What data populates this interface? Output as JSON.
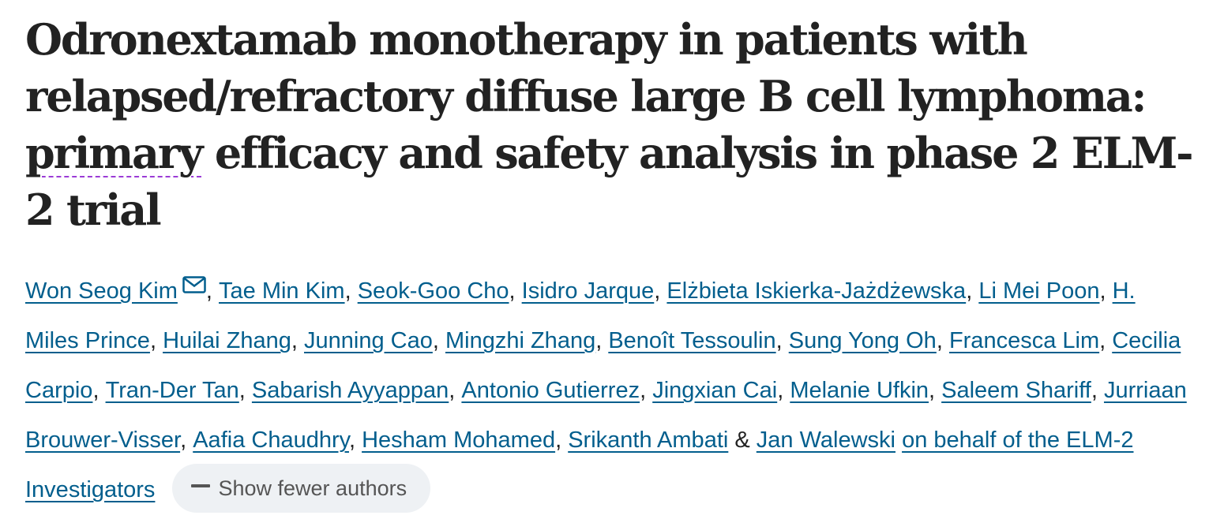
{
  "title": {
    "before_flag": "Odronextamab monotherapy in patients with relapsed/refractory diffuse large B cell lymphoma: ",
    "flagged_word": "primary",
    "after_flag": " efficacy and safety analysis in phase 2 ELM-2 trial"
  },
  "authors": [
    {
      "name": "Won Seog Kim",
      "corresponding": true
    },
    {
      "name": "Tae Min Kim"
    },
    {
      "name": "Seok-Goo Cho"
    },
    {
      "name": "Isidro Jarque"
    },
    {
      "name": "Elżbieta Iskierka-Jażdżewska"
    },
    {
      "name": "Li Mei Poon"
    },
    {
      "name": "H. Miles Prince"
    },
    {
      "name": "Huilai Zhang"
    },
    {
      "name": "Junning Cao"
    },
    {
      "name": "Mingzhi Zhang"
    },
    {
      "name": "Benoît Tessoulin"
    },
    {
      "name": "Sung Yong Oh"
    },
    {
      "name": "Francesca Lim"
    },
    {
      "name": "Cecilia Carpio"
    },
    {
      "name": "Tran-Der Tan"
    },
    {
      "name": "Sabarish Ayyappan"
    },
    {
      "name": "Antonio Gutierrez"
    },
    {
      "name": "Jingxian Cai"
    },
    {
      "name": "Melanie Ufkin"
    },
    {
      "name": "Saleem Shariff"
    },
    {
      "name": "Jurriaan Brouwer-Visser"
    },
    {
      "name": "Aafia Chaudhry"
    },
    {
      "name": "Hesham Mohamed"
    },
    {
      "name": "Srikanth Ambati"
    },
    {
      "name": "Jan Walewski"
    },
    {
      "name": "on behalf of the ELM-2 Investigators"
    }
  ],
  "separators": {
    "comma": ",",
    "ampersand": "&"
  },
  "show_fewer_label": "Show fewer authors",
  "icons": {
    "corresponding": "mail-icon",
    "collapse": "minus-icon"
  },
  "colors": {
    "title": "#222222",
    "link": "#025e8d",
    "button_bg": "#eef1f4",
    "button_text": "#555555",
    "spellcheck_underline": "#9b3bd6"
  }
}
